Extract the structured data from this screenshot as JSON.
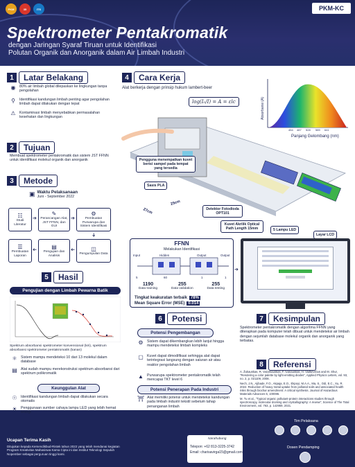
{
  "header": {
    "badge": "PKM-KC",
    "title": "Spektrometer Pentakromatik",
    "subtitle_lines": [
      "dengan Jaringan Syaraf Tiruan untuk Identifikasi",
      "Polutan Organik dan Anorganik dalam Air Limbah Industri"
    ],
    "logos": [
      "PKM",
      "35",
      "ITS"
    ]
  },
  "s1": {
    "num": "1",
    "title": "Latar Belakang",
    "bullets": [
      "80% air limbah global dilepaskan ke lingkungan tanpa pengolahan",
      "Identifikasi kandungan limbah penting agar pengolahan limbah dapat dilakukan dengan tepat",
      "Kontaminasi limbah menyebabkan permasalahan kesehatan dan lingkungan"
    ]
  },
  "s2": {
    "num": "2",
    "title": "Tujuan",
    "text": "Membuat spektrometer pentakromatik dan sistem JST FFNN untuk identifikasi molekul organik dan anorganik"
  },
  "s3": {
    "num": "3",
    "title": "Metode",
    "time_label": "Waktu Pelaksanaan",
    "time_value": "Juni - September 2022",
    "steps": [
      "Studi Literatur",
      "Perancangan Alat, JST FFNN, dan GUI",
      "Pembuatan Purwarupa dan Sistem Identifikasi",
      "Pengumpulan Data",
      "Pengujian dan Analisis",
      "Pembuatan Laporan"
    ]
  },
  "s4": {
    "num": "4",
    "title": "Cara Kerja",
    "caption": "Alat berkerja dengan prinsip hukum lambert-beer",
    "formula": "log(I₀/I) = A = εlc",
    "callout_user": "Pengguna menempatkan kuvet berisi sampel pada tempat yang tersedia",
    "labels": {
      "sasis": "Sasis PLA",
      "detector": "Detektor Fotodioda OPT101",
      "kuvet": "Kuvet Akrilik Optical Path Length 15mm",
      "led": "5 Lampu LED",
      "lcd": "Layar LCD",
      "dim1": "27cm",
      "dim2": "25cm"
    },
    "spectrum": {
      "ylabel": "Absorbansi (A)",
      "xlabel": "Panjang Gelombang (nm)",
      "ticks": [
        "454",
        "487",
        "528",
        "589",
        "641"
      ]
    },
    "ffnn": {
      "title": "FFNN",
      "subtitle": "Melakukan Identifikasi",
      "layers": [
        "Input",
        "Hidden",
        "Output",
        "Output"
      ],
      "sizes": [
        "5",
        "60",
        "1",
        "1"
      ],
      "stats": [
        {
          "value": "1190",
          "label": "Data training"
        },
        {
          "value": "255",
          "label": "Data validation"
        },
        {
          "value": "255",
          "label": "Data testing"
        }
      ],
      "acc_label": "Tingkat keakuratan terbaik",
      "acc_value": "78%",
      "mse_label": "Mean Square Error (MSE)",
      "mse_value": "0.014"
    }
  },
  "s5": {
    "num": "5",
    "title": "Hasil",
    "test_title": "Pengujian dengan Limbah Pewarna Batik",
    "caption": "Spektrum absorbansi spektrometer konvensional (kiri), spektrum absorbansi spektrometer pentakromatik (kanan)",
    "points": [
      "Sistem mampu mendeteksi 10 dari 13 molekul dalam database",
      "Alat sudah mampu merekonstruksi spektrum absorbansi dari spektrum polikromatik"
    ],
    "adv_title": "Keunggulan Alat",
    "adv": [
      "Identifikasi kandungan limbah dapat dilakukan secara otomatis",
      "Penggunaan sumber cahaya lampu LED yang lebih hemat energi"
    ]
  },
  "s6": {
    "num": "6",
    "title": "Potensi",
    "dev_title": "Potensi Pengembangan",
    "dev": [
      "Sistem dapat dikembangkan lebih lanjut hingga mampu mendeteksi limbah kompleks",
      "Kuvet dapat dimodifikasi sehingga alat dapat terintegrasi langsung dengan saluran air atau reaktor pengolahan limbah",
      "Purwarupa spektrometer pentakromatik telah mencapai TKT level 6"
    ],
    "app_title": "Potensi Penerapan Pada Industri",
    "app": "Alat memiliki potensi untuk mendeteksi kandungan pada limbah industri tekstil sebelum tahap penanganan limbah"
  },
  "s7": {
    "num": "7",
    "title": "Kesimpulan",
    "text": "Spektrometer pentakromatik dengan algoritma FFNN yang diterapkan pada komputer telah dibuat untuk mendeteksi air limbah dengan sejumlah database molekul organik dan anorganik yang terbatas."
  },
  "s8": {
    "num": "8",
    "title": "Referensi",
    "refs": [
      "A. Žukauskas, R. Vaicekauskas, F. Ivanauskas, H. Vaitkevičius and M. Shur, \"Rendering a color palette by light-emitting diodes\", Applied Physics Letters, vol. 93, no. 2, p. 021109, 2008.",
      "Nech, J.N., Ajibade, F.O., Akpaja, E.O., Ekpoyi, M.A.A., Ma, S., Odi, E.C., Xu, R. 2022. Reduction of heavy metal uptake from polluted soils and associated health risks through biochar amendment: A critical synthesis. Journal of Hazardous Materials Advances 6, 100086.",
      "M. Tu et al., \"Typical organic pollutant-protein interactions studies through spectroscopy, molecular docking and crystallography: A review\", Science of The Total Environment, vol. 763, p. 142959, 2021."
    ]
  },
  "footer": {
    "thanks_title": "Ucapan Terima Kasih",
    "thanks_text": "Ditujukan kepada Kemendikbud-Ristek tahun 2022 yang telah mendanai kegiatan Program Kreativitas Mahasiswa Karsa Cipta ini dan Institut Teknologi Sepuluh Nopember sebagai perguruan tinggi kami.",
    "team_label": "Tim Pelaksana",
    "advisor_label": "Dosen Pendamping",
    "social": "Narahubung",
    "phone": "Telepon: +62 813-3225-3742",
    "email": "Email: charisavirga15@gmail.com"
  },
  "colors": {
    "navy": "#1d2558",
    "accent": "#3b4cc0"
  }
}
